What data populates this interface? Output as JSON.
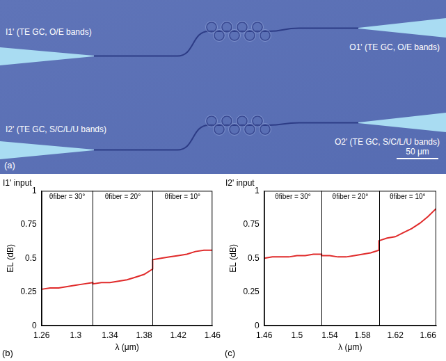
{
  "image_panel": {
    "panel": "(a)",
    "labels": {
      "I1": "I1' (TE GC, O/E bands)",
      "O1": "O1' (TE GC, O/E bands)",
      "I2": "I2' (TE GC, S/C/L/U bands)",
      "O2": "O2' (TE GC, S/C/L/U bands)"
    },
    "scale_bar": "50 μm"
  },
  "chart_data": [
    {
      "type": "line",
      "panel": "(b)",
      "title": "I1' input",
      "x_label": "λ (μm)",
      "y_label": "EL (dB)",
      "x": [
        1.26,
        1.27,
        1.28,
        1.29,
        1.3,
        1.31,
        1.32,
        1.32,
        1.33,
        1.34,
        1.35,
        1.36,
        1.37,
        1.38,
        1.39,
        1.39,
        1.4,
        1.41,
        1.42,
        1.43,
        1.44,
        1.45,
        1.46
      ],
      "values": [
        0.27,
        0.28,
        0.28,
        0.29,
        0.3,
        0.31,
        0.32,
        0.31,
        0.32,
        0.32,
        0.33,
        0.34,
        0.36,
        0.38,
        0.42,
        0.49,
        0.5,
        0.51,
        0.52,
        0.53,
        0.55,
        0.56,
        0.56
      ],
      "color": "#e02a2a",
      "xlim": [
        1.26,
        1.46
      ],
      "xticks": [
        1.26,
        1.3,
        1.34,
        1.38,
        1.42,
        1.46
      ],
      "ylim": [
        0,
        1
      ],
      "yticks": [
        0,
        0.25,
        0.5,
        0.75,
        1
      ],
      "grid": false,
      "annotations": [
        {
          "text": "θfiber = 30°",
          "x": [
            1.26,
            1.32
          ]
        },
        {
          "text": "θfiber = 20°",
          "x": [
            1.32,
            1.39
          ]
        },
        {
          "text": "θfiber = 10°",
          "x": [
            1.39,
            1.46
          ]
        }
      ]
    },
    {
      "type": "line",
      "panel": "(c)",
      "title": "I2' input",
      "x_label": "λ (μm)",
      "y_label": "EL (dB)",
      "x": [
        1.46,
        1.47,
        1.48,
        1.49,
        1.5,
        1.51,
        1.52,
        1.53,
        1.53,
        1.54,
        1.55,
        1.56,
        1.57,
        1.58,
        1.59,
        1.6,
        1.6,
        1.61,
        1.62,
        1.63,
        1.64,
        1.65,
        1.66,
        1.67
      ],
      "values": [
        0.5,
        0.51,
        0.51,
        0.51,
        0.52,
        0.52,
        0.53,
        0.53,
        0.52,
        0.52,
        0.51,
        0.51,
        0.52,
        0.53,
        0.54,
        0.56,
        0.63,
        0.65,
        0.66,
        0.69,
        0.72,
        0.76,
        0.81,
        0.87
      ],
      "color": "#e02a2a",
      "xlim": [
        1.46,
        1.67
      ],
      "xticks": [
        1.46,
        1.5,
        1.54,
        1.58,
        1.62,
        1.66
      ],
      "ylim": [
        0,
        1
      ],
      "yticks": [
        0,
        0.25,
        0.5,
        0.75,
        1
      ],
      "grid": false,
      "annotations": [
        {
          "text": "θfiber = 30°",
          "x": [
            1.46,
            1.53
          ]
        },
        {
          "text": "θfiber = 20°",
          "x": [
            1.53,
            1.6
          ]
        },
        {
          "text": "θfiber = 10°",
          "x": [
            1.6,
            1.67
          ]
        }
      ]
    }
  ]
}
